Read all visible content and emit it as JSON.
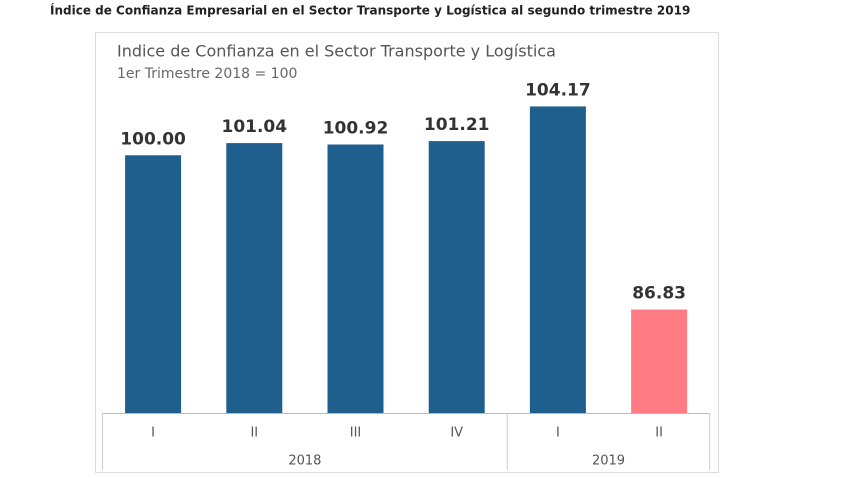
{
  "caption": "Índice de Confianza Empresarial en el Sector Transporte y Logística al segundo trimestre 2019",
  "chart_data": {
    "type": "bar",
    "title": "Indice de Confianza en el Sector Transporte y Logística",
    "subtitle": "1er Trimestre 2018 = 100",
    "ylim": [
      78,
      106
    ],
    "groups": [
      {
        "name": "2018",
        "categories": [
          "I",
          "II",
          "III",
          "IV"
        ],
        "values": [
          100.0,
          101.04,
          100.92,
          101.21
        ],
        "value_labels": [
          "100.00",
          "101.04",
          "100.92",
          "101.21"
        ],
        "colors": [
          "#1f5f8e",
          "#1f5f8e",
          "#1f5f8e",
          "#1f5f8e"
        ]
      },
      {
        "name": "2019",
        "categories": [
          "I",
          "II"
        ],
        "values": [
          104.17,
          86.83
        ],
        "value_labels": [
          "104.17",
          "86.83"
        ],
        "colors": [
          "#1f5f8e",
          "#ff7b84"
        ]
      }
    ]
  }
}
